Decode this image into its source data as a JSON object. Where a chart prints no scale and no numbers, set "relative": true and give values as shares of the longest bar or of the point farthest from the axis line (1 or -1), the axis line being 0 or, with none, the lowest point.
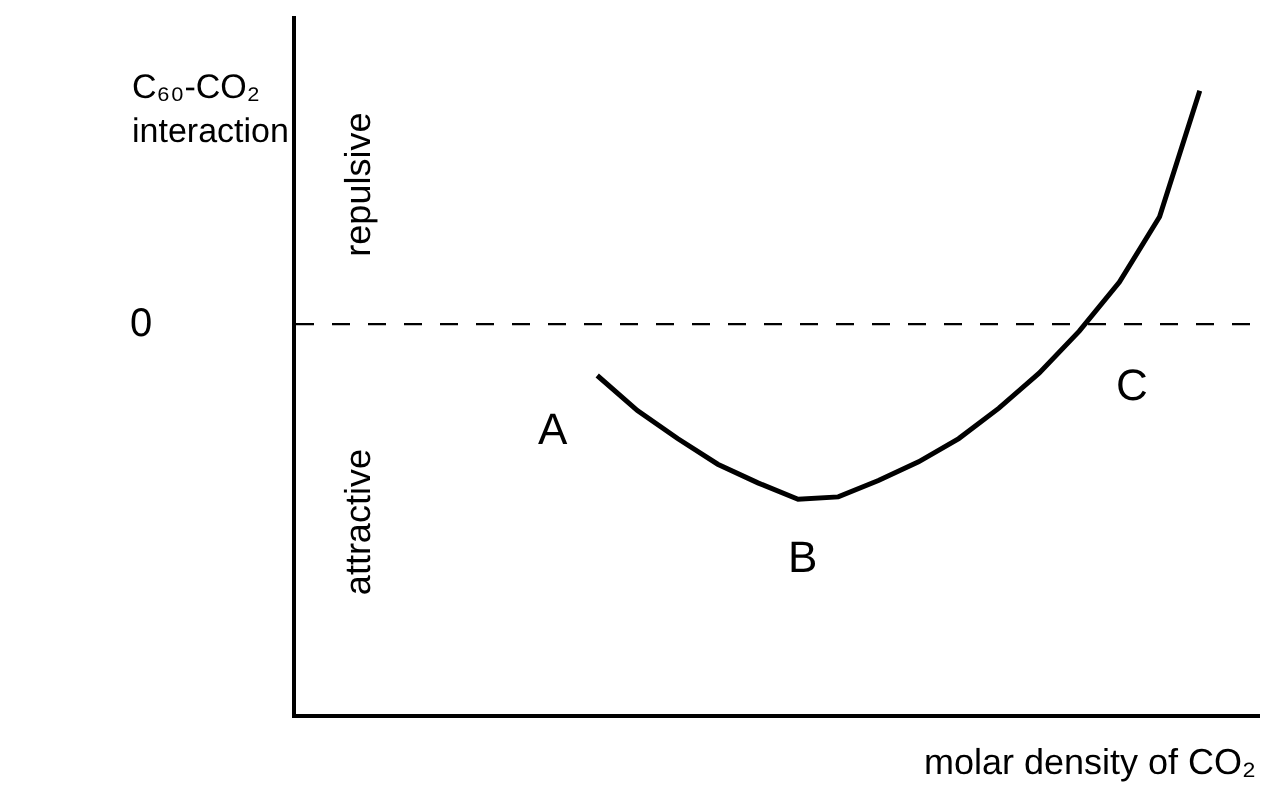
{
  "chart_data": {
    "type": "line",
    "relative": true,
    "ylabel": "C₆₀-CO₂ interaction",
    "categories": [
      null,
      null,
      null,
      null,
      null,
      null,
      null,
      null,
      null,
      null,
      null,
      null,
      null,
      null,
      null,
      null,
      null,
      null,
      null,
      null,
      null,
      null,
      null,
      null
    ],
    "series": [
      {
        "color": "#000000",
        "values": [
          null,
          null,
          null,
          null,
          null,
          null,
          null,
          -0.22,
          -0.37,
          -0.49,
          -0.6,
          -0.68,
          -0.75,
          -0.74,
          -0.67,
          -0.59,
          -0.49,
          -0.36,
          -0.21,
          -0.03,
          0.18,
          0.46,
          1.0,
          null
        ]
      }
    ],
    "ref_lines": [
      {
        "axis": "y",
        "value": 0,
        "label": "0",
        "line_style": "dashed",
        "color": "#000000"
      }
    ],
    "annotations": [
      "repulsive",
      "attractive",
      "A",
      "B",
      "C",
      "molar density of CO₂"
    ],
    "marker": "none",
    "line_style": "solid"
  }
}
